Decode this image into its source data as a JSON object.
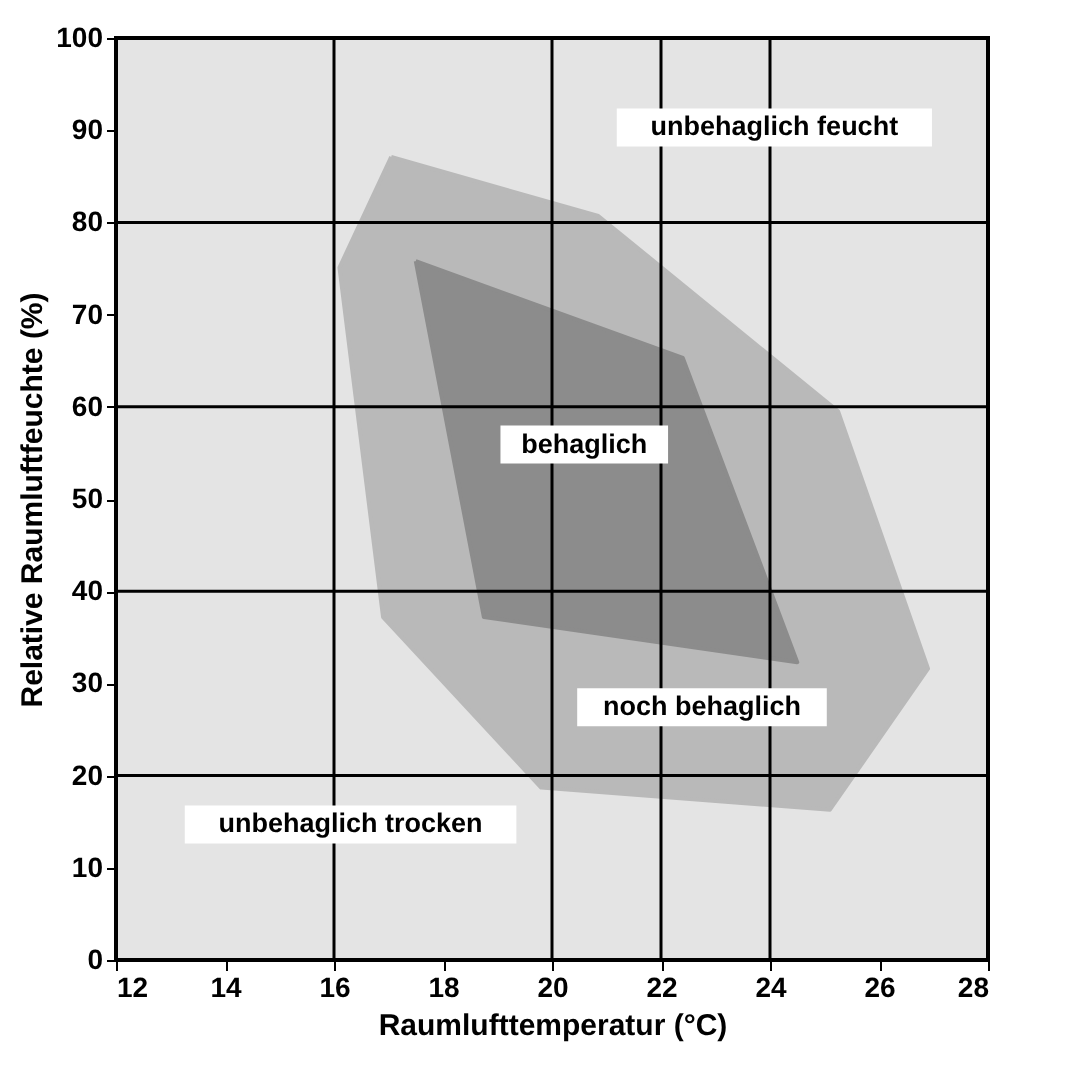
{
  "chart_data": {
    "type": "area",
    "xlabel": "Raumlufttemperatur (°C)",
    "ylabel": "Relative Raumluftfeuchte  (%)",
    "series": [
      {
        "color": "#b9b9b9",
        "x": [
          17.05,
          20.85,
          25.25,
          26.9,
          25.1,
          19.8,
          16.9,
          16.1,
          17.05
        ],
        "values": [
          87.1,
          80.7,
          59.5,
          31.6,
          16.3,
          18.7,
          37.2,
          75.1,
          87.1
        ]
      },
      {
        "color": "#8c8c8c",
        "x": [
          17.5,
          22.4,
          24.5,
          18.75,
          17.5
        ],
        "values": [
          75.8,
          65.3,
          32.3,
          37.2,
          75.8
        ]
      }
    ],
    "xlim": [
      12,
      28
    ],
    "xticks": [
      12,
      14,
      16,
      18,
      20,
      22,
      24,
      26,
      28
    ],
    "ylim": [
      0,
      100
    ],
    "yticks": [
      0,
      10,
      20,
      30,
      40,
      50,
      60,
      70,
      80,
      90,
      100
    ],
    "ref_lines": [
      {
        "axis": "x",
        "value": 16
      },
      {
        "axis": "x",
        "value": 20
      },
      {
        "axis": "x",
        "value": 22
      },
      {
        "axis": "x",
        "value": 24
      },
      {
        "axis": "y",
        "value": 20
      },
      {
        "axis": "y",
        "value": 40
      },
      {
        "axis": "y",
        "value": 60
      },
      {
        "axis": "y",
        "value": 80
      }
    ],
    "annotations": [
      "unbehaglich feucht",
      "behaglich",
      "noch behaglich",
      "unbehaglich trocken"
    ]
  }
}
